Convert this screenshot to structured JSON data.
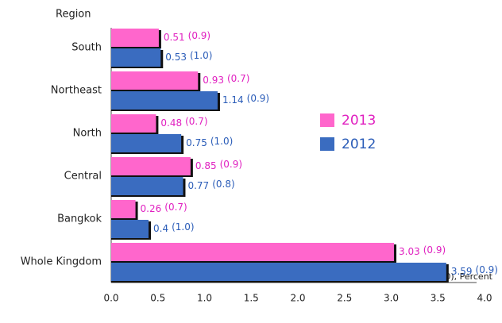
{
  "chart_data": {
    "type": "bar",
    "orientation": "horizontal",
    "y_axis_label": "Region",
    "x_axis_label": "Number(00,000), Percent",
    "categories": [
      "South",
      "Northeast",
      "North",
      "Central",
      "Bangkok",
      "Whole Kingdom"
    ],
    "series": [
      {
        "name": "2013",
        "color": "#ff66cc",
        "label_color": "#e020c0",
        "values": [
          0.51,
          0.93,
          0.48,
          0.85,
          0.26,
          3.03
        ],
        "percent_labels": [
          "(0.9)",
          "(0.7)",
          "(0.7)",
          "(0.9)",
          "(0.7)",
          "(0.9)"
        ]
      },
      {
        "name": "2012",
        "color": "#3a6cc0",
        "label_color": "#2a5cb8",
        "values": [
          0.53,
          1.14,
          0.75,
          0.77,
          0.4,
          3.59
        ],
        "percent_labels": [
          "(1.0)",
          "(0.9)",
          "(1.0)",
          "(0.8)",
          "(1.0)",
          "(0.9)"
        ]
      }
    ],
    "xlim": [
      0,
      4
    ],
    "xticks": [
      {
        "value": 0,
        "label": "0.0"
      },
      0.5,
      {
        "value": 1,
        "label": "1.0"
      },
      1.5,
      {
        "value": 2,
        "label": "2.0"
      },
      2.5,
      {
        "value": 3,
        "label": "3.0"
      },
      3.5,
      {
        "value": 4,
        "label": "4.0"
      }
    ],
    "legend": "right",
    "grid": false
  }
}
